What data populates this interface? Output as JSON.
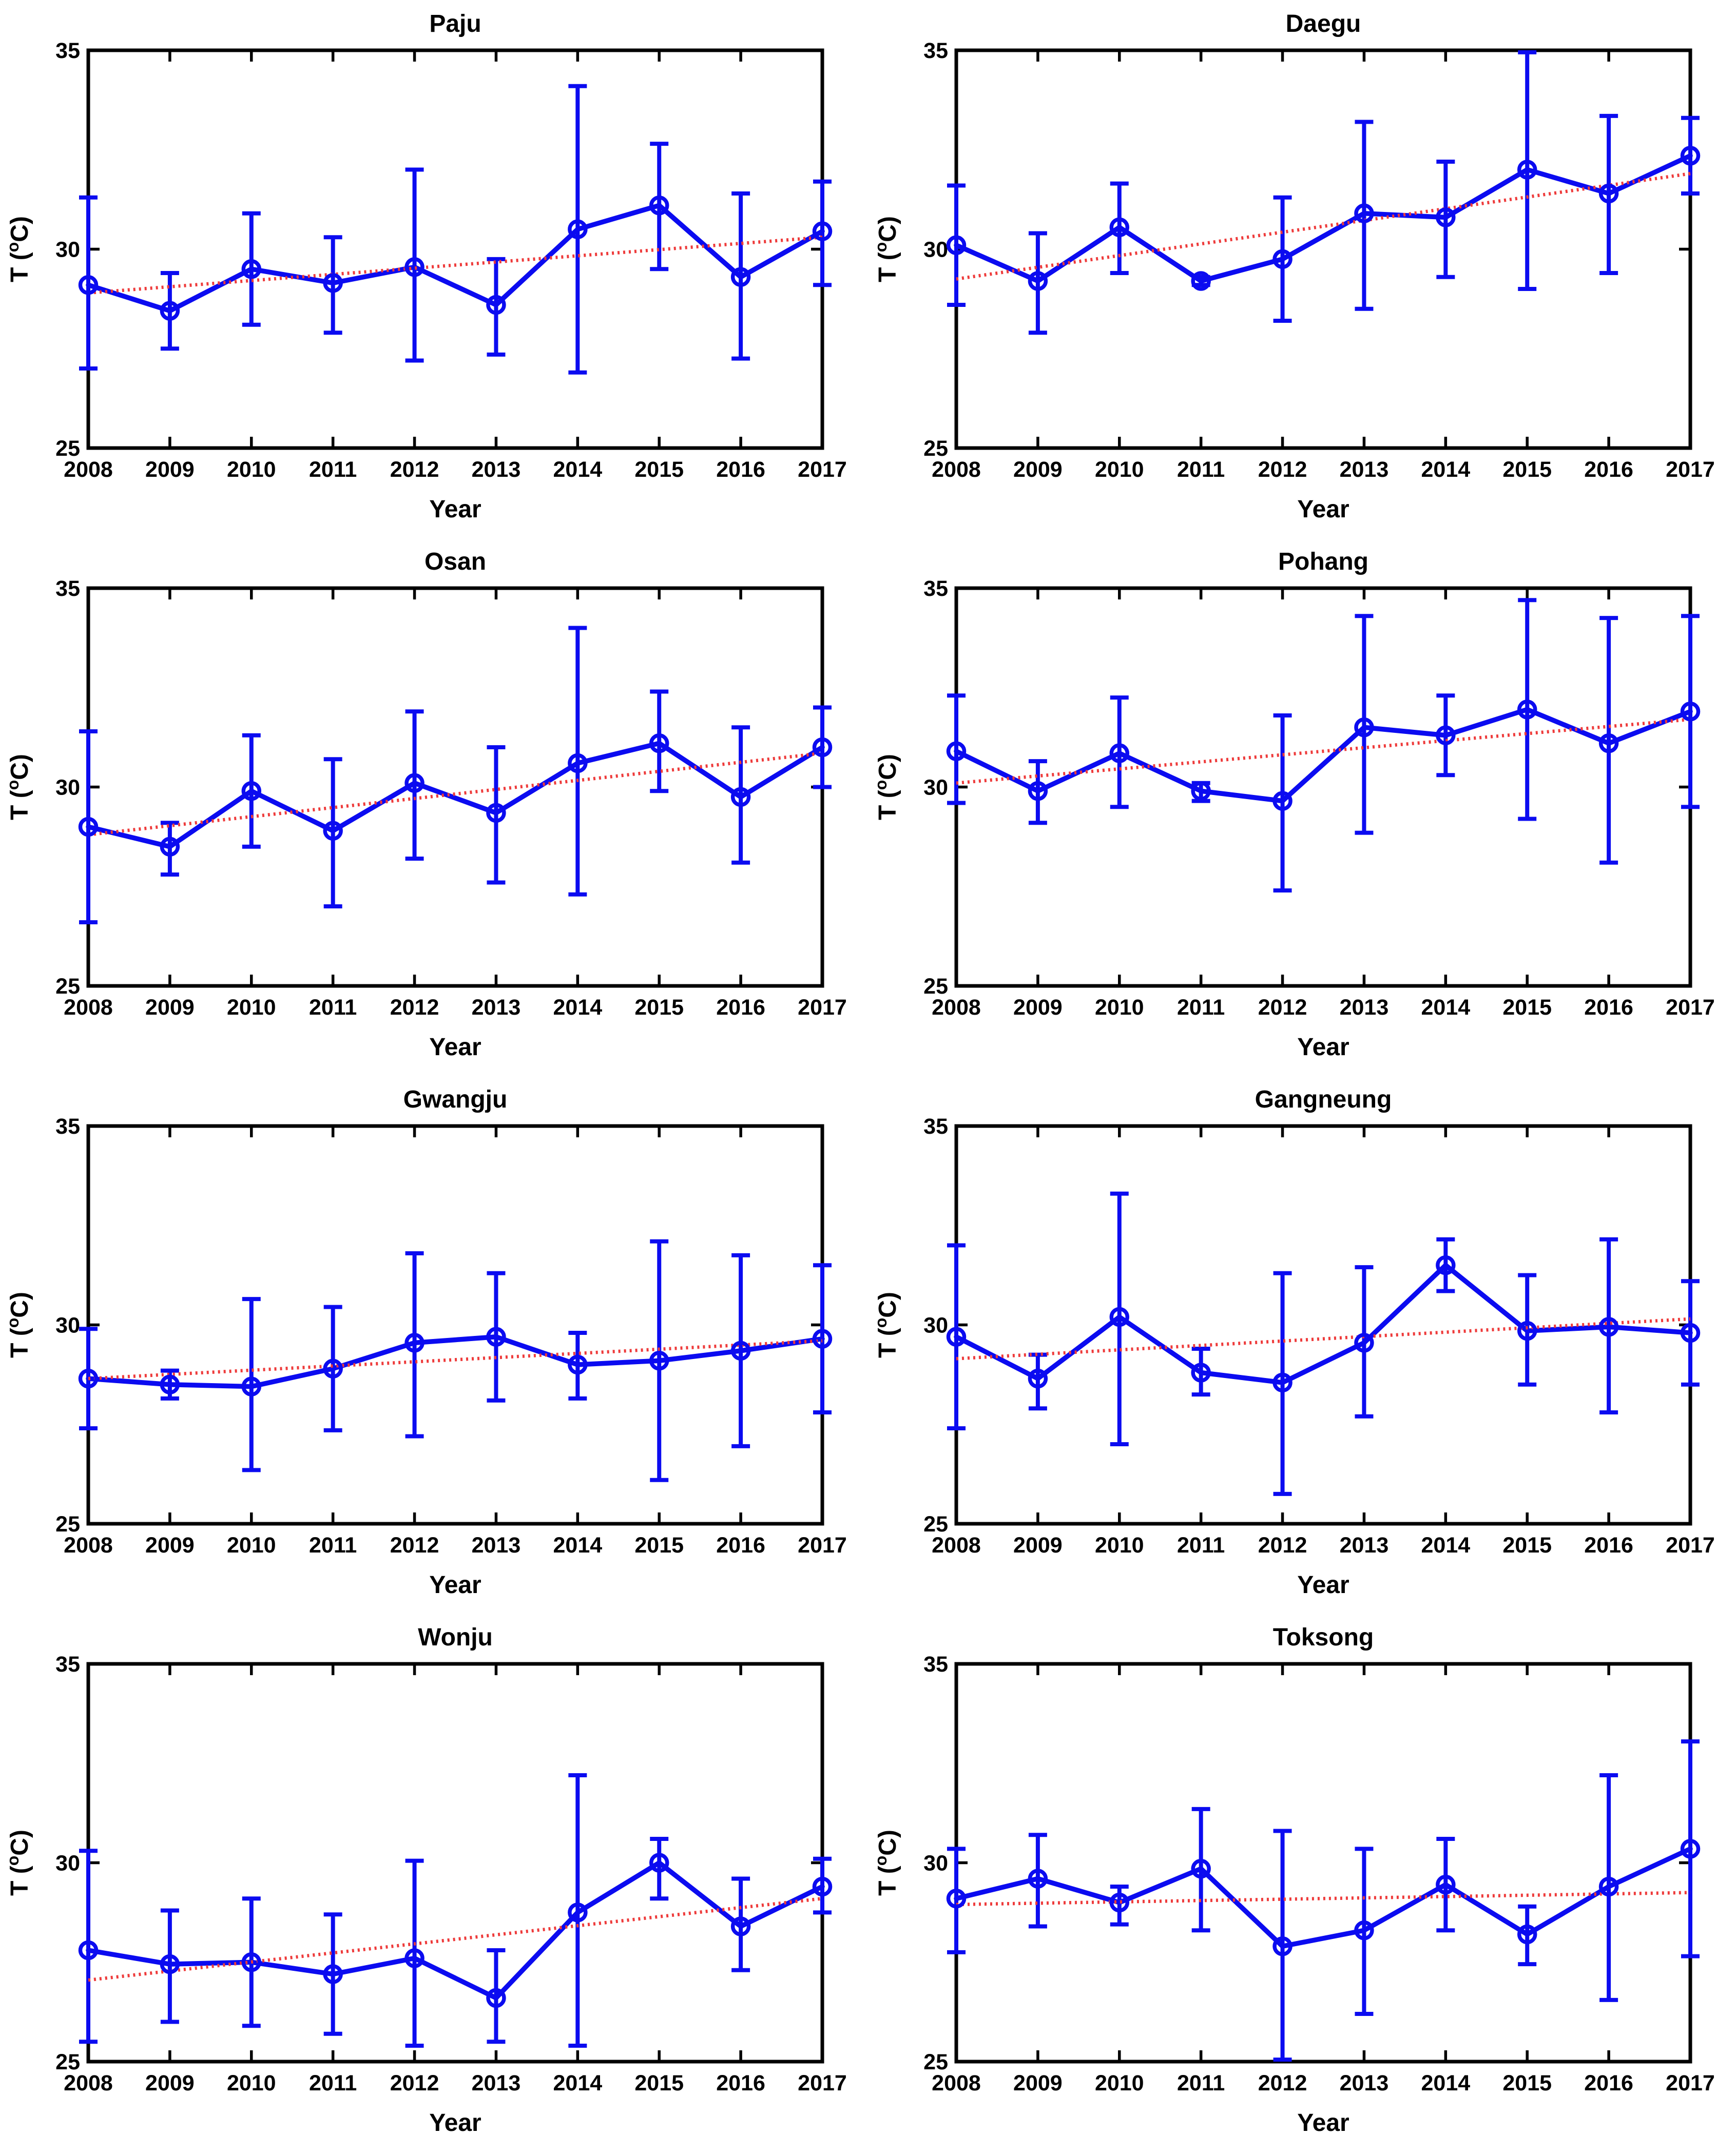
{
  "style": {
    "background": "#ffffff",
    "data_color": "#0b0bf0",
    "trend_color": "#ee3b3b",
    "axis_color": "#000000"
  },
  "axes": {
    "xlabel": "Year",
    "ylabel": "T (°C)",
    "ylabel_parts": [
      "T (",
      "o",
      "C)"
    ],
    "ylim": [
      25,
      35
    ],
    "yticks": [
      25,
      30,
      35
    ],
    "xticks": [
      2008,
      2009,
      2010,
      2011,
      2012,
      2013,
      2014,
      2015,
      2016,
      2017
    ]
  },
  "chart_data": [
    {
      "type": "line",
      "title": "Paju",
      "xlabel": "Year",
      "ylabel": "T (°C)",
      "ylim": [
        25,
        35
      ],
      "yticks": [
        25,
        30,
        35
      ],
      "x": [
        2008,
        2009,
        2010,
        2011,
        2012,
        2013,
        2014,
        2015,
        2016,
        2017
      ],
      "mean": [
        29.1,
        28.45,
        29.5,
        29.15,
        29.55,
        28.6,
        30.5,
        31.1,
        29.3,
        30.45
      ],
      "upper": [
        31.3,
        29.4,
        30.9,
        30.3,
        32.0,
        29.75,
        34.1,
        32.65,
        31.4,
        31.7
      ],
      "lower": [
        27.0,
        27.5,
        28.1,
        27.9,
        27.2,
        27.35,
        26.9,
        29.5,
        27.25,
        29.1
      ],
      "trend": [
        28.9,
        30.3
      ]
    },
    {
      "type": "line",
      "title": "Daegu",
      "xlabel": "Year",
      "ylabel": "T (°C)",
      "ylim": [
        25,
        35
      ],
      "yticks": [
        25,
        30,
        35
      ],
      "x": [
        2008,
        2009,
        2010,
        2011,
        2012,
        2013,
        2014,
        2015,
        2016,
        2017
      ],
      "mean": [
        30.1,
        29.2,
        30.55,
        29.2,
        29.75,
        30.9,
        30.8,
        32.0,
        31.4,
        32.35
      ],
      "upper": [
        31.6,
        30.4,
        31.65,
        29.3,
        31.3,
        33.2,
        32.2,
        34.95,
        33.35,
        33.3
      ],
      "lower": [
        28.6,
        27.9,
        29.4,
        29.1,
        28.2,
        28.5,
        29.3,
        29.0,
        29.4,
        31.4
      ],
      "trend": [
        29.25,
        31.9
      ]
    },
    {
      "type": "line",
      "title": "Osan",
      "xlabel": "Year",
      "ylabel": "T (°C)",
      "ylim": [
        25,
        35
      ],
      "yticks": [
        25,
        30,
        35
      ],
      "x": [
        2008,
        2009,
        2010,
        2011,
        2012,
        2013,
        2014,
        2015,
        2016,
        2017
      ],
      "mean": [
        29.0,
        28.5,
        29.9,
        28.9,
        30.1,
        29.35,
        30.6,
        31.1,
        29.75,
        31.0
      ],
      "upper": [
        31.4,
        29.1,
        31.3,
        30.7,
        31.9,
        31.0,
        34.0,
        32.4,
        31.5,
        32.0
      ],
      "lower": [
        26.6,
        27.8,
        28.5,
        27.0,
        28.2,
        27.6,
        27.3,
        29.9,
        28.1,
        30.0
      ],
      "trend": [
        28.8,
        30.85
      ]
    },
    {
      "type": "line",
      "title": "Pohang",
      "xlabel": "Year",
      "ylabel": "T (°C)",
      "ylim": [
        25,
        35
      ],
      "yticks": [
        25,
        30,
        35
      ],
      "x": [
        2008,
        2009,
        2010,
        2011,
        2012,
        2013,
        2014,
        2015,
        2016,
        2017
      ],
      "mean": [
        30.9,
        29.9,
        30.85,
        29.9,
        29.65,
        31.5,
        31.3,
        31.95,
        31.1,
        31.9
      ],
      "upper": [
        32.3,
        30.65,
        32.25,
        30.1,
        31.8,
        34.3,
        32.3,
        34.7,
        34.25,
        34.3
      ],
      "lower": [
        29.6,
        29.1,
        29.5,
        29.65,
        27.4,
        28.85,
        30.3,
        29.2,
        28.1,
        29.5
      ],
      "trend": [
        30.1,
        31.7
      ]
    },
    {
      "type": "line",
      "title": "Gwangju",
      "xlabel": "Year",
      "ylabel": "T (°C)",
      "ylim": [
        25,
        35
      ],
      "yticks": [
        25,
        30,
        35
      ],
      "x": [
        2008,
        2009,
        2010,
        2011,
        2012,
        2013,
        2014,
        2015,
        2016,
        2017
      ],
      "mean": [
        28.65,
        28.5,
        28.45,
        28.9,
        29.55,
        29.7,
        29.0,
        29.1,
        29.35,
        29.65
      ],
      "upper": [
        29.9,
        28.85,
        30.65,
        30.45,
        31.8,
        31.3,
        29.8,
        32.1,
        31.75,
        31.5
      ],
      "lower": [
        27.4,
        28.15,
        26.35,
        27.35,
        27.2,
        28.1,
        28.15,
        26.1,
        26.95,
        27.8
      ],
      "trend": [
        28.65,
        29.6
      ]
    },
    {
      "type": "line",
      "title": "Gangneung",
      "xlabel": "Year",
      "ylabel": "T (°C)",
      "ylim": [
        25,
        35
      ],
      "yticks": [
        25,
        30,
        35
      ],
      "x": [
        2008,
        2009,
        2010,
        2011,
        2012,
        2013,
        2014,
        2015,
        2016,
        2017
      ],
      "mean": [
        29.7,
        28.65,
        30.2,
        28.8,
        28.55,
        29.55,
        31.5,
        29.85,
        29.95,
        29.8
      ],
      "upper": [
        32.0,
        29.25,
        33.3,
        29.4,
        31.3,
        31.45,
        32.15,
        31.25,
        32.15,
        31.1
      ],
      "lower": [
        27.4,
        27.9,
        27.0,
        28.25,
        25.75,
        27.7,
        30.85,
        28.5,
        27.8,
        28.5
      ],
      "trend": [
        29.15,
        30.15
      ]
    },
    {
      "type": "line",
      "title": "Wonju",
      "xlabel": "Year",
      "ylabel": "T (°C)",
      "ylim": [
        25,
        35
      ],
      "yticks": [
        25,
        30,
        35
      ],
      "x": [
        2008,
        2009,
        2010,
        2011,
        2012,
        2013,
        2014,
        2015,
        2016,
        2017
      ],
      "mean": [
        27.8,
        27.45,
        27.5,
        27.2,
        27.6,
        26.6,
        28.75,
        30.0,
        28.4,
        29.4
      ],
      "upper": [
        30.3,
        28.8,
        29.1,
        28.7,
        30.05,
        27.8,
        32.2,
        30.6,
        29.6,
        30.1
      ],
      "lower": [
        25.5,
        26.0,
        25.9,
        25.7,
        25.4,
        25.5,
        25.4,
        29.1,
        27.3,
        28.75
      ],
      "trend": [
        27.05,
        29.1
      ]
    },
    {
      "type": "line",
      "title": "Toksong",
      "xlabel": "Year",
      "ylabel": "T (°C)",
      "ylim": [
        25,
        35
      ],
      "yticks": [
        25,
        30,
        35
      ],
      "x": [
        2008,
        2009,
        2010,
        2011,
        2012,
        2013,
        2014,
        2015,
        2016,
        2017
      ],
      "mean": [
        29.1,
        29.6,
        29.0,
        29.85,
        27.9,
        28.3,
        29.45,
        28.2,
        29.4,
        30.35
      ],
      "upper": [
        30.35,
        30.7,
        29.4,
        31.35,
        30.8,
        30.35,
        30.6,
        28.9,
        32.2,
        33.05
      ],
      "lower": [
        27.75,
        28.4,
        28.45,
        28.3,
        25.05,
        26.2,
        28.3,
        27.45,
        26.55,
        27.65
      ],
      "trend": [
        28.95,
        29.25
      ]
    }
  ]
}
